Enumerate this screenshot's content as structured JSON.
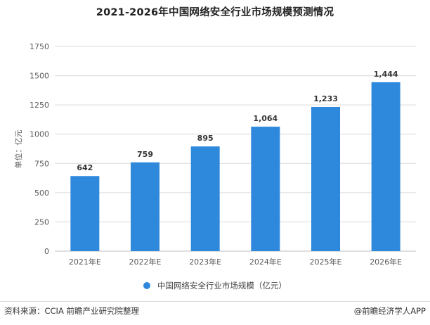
{
  "chart_data": {
    "type": "bar",
    "title": "2021-2026年中国网络安全行业市场规模预测情况",
    "ylabel": "单位：亿元",
    "xlabel": "",
    "categories": [
      "2021年E",
      "2022年E",
      "2023年E",
      "2024年E",
      "2025年E",
      "2026年E"
    ],
    "series": [
      {
        "name": "中国网络安全行业市场规模（亿元）",
        "values": [
          642,
          759,
          895,
          1064,
          1233,
          1444
        ],
        "labels": [
          "642",
          "759",
          "895",
          "1,064",
          "1,233",
          "1,444"
        ]
      }
    ],
    "ylim": [
      0,
      1750
    ],
    "yticks": [
      0,
      250,
      500,
      750,
      1000,
      1250,
      1500,
      1750
    ],
    "grid": true,
    "legend_position": "bottom",
    "bar_color": "#2e89dc"
  },
  "footer": {
    "source": "资料来源：CCIA 前瞻产业研究院整理",
    "brand": "@前瞻经济学人APP"
  }
}
